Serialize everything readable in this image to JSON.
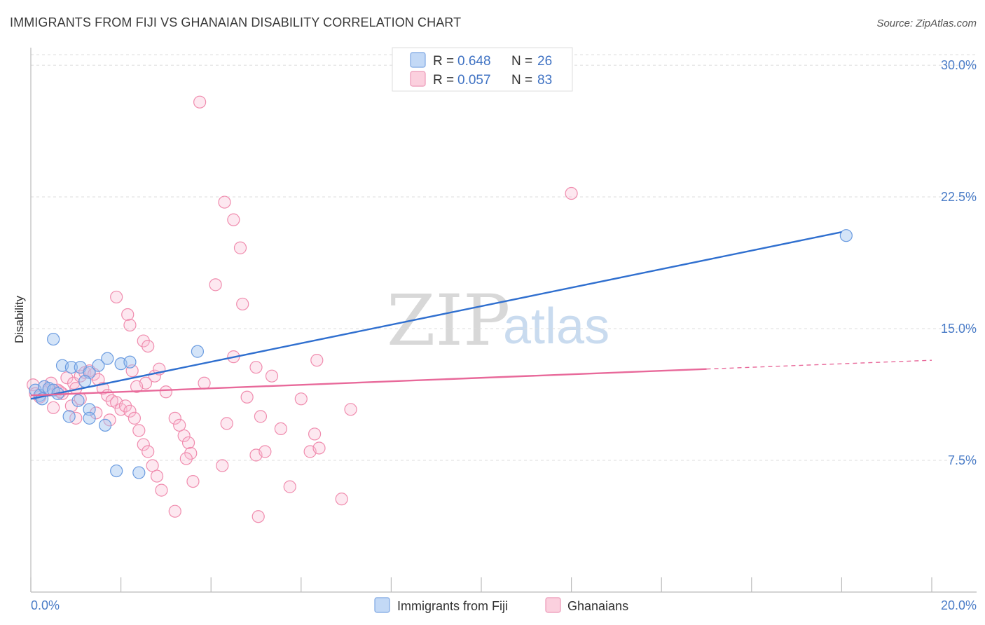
{
  "title": "IMMIGRANTS FROM FIJI VS GHANAIAN DISABILITY CORRELATION CHART",
  "source": "Source: ZipAtlas.com",
  "watermark": {
    "zip": "ZIP",
    "atlas": "atlas"
  },
  "chart_data": {
    "type": "scatter",
    "title": "IMMIGRANTS FROM FIJI VS GHANAIAN DISABILITY CORRELATION CHART",
    "xlabel": "",
    "ylabel": "Disability",
    "xlim": [
      0,
      20
    ],
    "ylim": [
      0,
      31
    ],
    "x_tick_labels": {
      "min": "0.0%",
      "max": "20.0%"
    },
    "y_ticks": [
      {
        "value": 7.5,
        "label": "7.5%"
      },
      {
        "value": 15.0,
        "label": "15.0%"
      },
      {
        "value": 22.5,
        "label": "22.5%"
      },
      {
        "value": 30.0,
        "label": "30.0%"
      }
    ],
    "grid": true,
    "legend_position": "top-center",
    "series": [
      {
        "name": "Immigrants from Fiji",
        "color": "#6a9be0",
        "line_color": "#2f6fcf",
        "r_label": "R =",
        "r_value": "0.648",
        "n_label": "N =",
        "n_value": "26",
        "trend": {
          "x0": 0.0,
          "y0": 11.0,
          "x1": 18.0,
          "y1": 20.5,
          "dashed_to": null
        },
        "points": [
          [
            0.1,
            11.5
          ],
          [
            0.2,
            11.2
          ],
          [
            0.3,
            11.7
          ],
          [
            0.4,
            11.6
          ],
          [
            0.5,
            11.5
          ],
          [
            0.6,
            11.3
          ],
          [
            0.5,
            14.4
          ],
          [
            0.7,
            12.9
          ],
          [
            0.9,
            12.8
          ],
          [
            1.1,
            12.8
          ],
          [
            1.3,
            12.5
          ],
          [
            1.5,
            12.9
          ],
          [
            1.7,
            13.3
          ],
          [
            2.0,
            13.0
          ],
          [
            2.2,
            13.1
          ],
          [
            3.7,
            13.7
          ],
          [
            1.2,
            12.0
          ],
          [
            1.05,
            10.9
          ],
          [
            0.85,
            10.0
          ],
          [
            1.3,
            10.4
          ],
          [
            1.3,
            9.9
          ],
          [
            1.65,
            9.5
          ],
          [
            1.9,
            6.9
          ],
          [
            2.4,
            6.8
          ],
          [
            18.1,
            20.3
          ],
          [
            0.25,
            11.0
          ]
        ]
      },
      {
        "name": "Ghanaians",
        "color": "#f08cae",
        "line_color": "#e8699a",
        "r_label": "R =",
        "r_value": "0.057",
        "n_label": "N =",
        "n_value": "83",
        "trend": {
          "x0": 0.0,
          "y0": 11.2,
          "x1": 15.0,
          "y1": 12.7,
          "dashed_to": {
            "x": 20.0,
            "y": 13.2
          }
        },
        "points": [
          [
            0.05,
            11.8
          ],
          [
            0.1,
            11.3
          ],
          [
            0.3,
            11.7
          ],
          [
            0.4,
            11.5
          ],
          [
            0.5,
            10.5
          ],
          [
            0.6,
            11.5
          ],
          [
            0.7,
            11.3
          ],
          [
            0.8,
            12.2
          ],
          [
            0.9,
            10.6
          ],
          [
            0.95,
            11.9
          ],
          [
            1.0,
            11.6
          ],
          [
            1.1,
            12.3
          ],
          [
            1.2,
            12.5
          ],
          [
            1.3,
            12.6
          ],
          [
            1.4,
            12.4
          ],
          [
            1.5,
            12.1
          ],
          [
            1.6,
            11.6
          ],
          [
            1.7,
            11.2
          ],
          [
            1.8,
            10.9
          ],
          [
            1.9,
            10.8
          ],
          [
            2.0,
            10.4
          ],
          [
            2.1,
            10.6
          ],
          [
            2.2,
            10.3
          ],
          [
            2.3,
            9.9
          ],
          [
            2.4,
            9.2
          ],
          [
            2.5,
            8.4
          ],
          [
            2.6,
            8.0
          ],
          [
            2.7,
            7.2
          ],
          [
            2.8,
            6.6
          ],
          [
            2.9,
            5.8
          ],
          [
            1.9,
            16.8
          ],
          [
            2.15,
            15.8
          ],
          [
            2.2,
            15.2
          ],
          [
            2.5,
            14.3
          ],
          [
            2.6,
            14.0
          ],
          [
            2.75,
            12.3
          ],
          [
            2.85,
            12.7
          ],
          [
            2.55,
            11.9
          ],
          [
            3.0,
            11.4
          ],
          [
            3.2,
            9.9
          ],
          [
            3.3,
            9.5
          ],
          [
            3.4,
            8.9
          ],
          [
            3.5,
            8.5
          ],
          [
            3.55,
            7.9
          ],
          [
            3.6,
            6.3
          ],
          [
            3.2,
            4.6
          ],
          [
            3.75,
            27.9
          ],
          [
            3.85,
            11.9
          ],
          [
            4.1,
            17.5
          ],
          [
            4.3,
            22.2
          ],
          [
            4.5,
            21.2
          ],
          [
            4.65,
            19.6
          ],
          [
            4.7,
            16.4
          ],
          [
            4.5,
            13.4
          ],
          [
            4.35,
            9.6
          ],
          [
            4.8,
            11.1
          ],
          [
            5.0,
            12.8
          ],
          [
            5.0,
            7.8
          ],
          [
            5.05,
            4.3
          ],
          [
            5.2,
            8.0
          ],
          [
            5.35,
            12.3
          ],
          [
            5.75,
            6.0
          ],
          [
            6.2,
            8.0
          ],
          [
            6.3,
            9.0
          ],
          [
            6.35,
            13.2
          ],
          [
            6.4,
            8.2
          ],
          [
            6.9,
            5.3
          ],
          [
            7.1,
            10.4
          ],
          [
            12.0,
            22.7
          ],
          [
            1.0,
            9.9
          ],
          [
            1.45,
            10.2
          ],
          [
            1.75,
            9.8
          ],
          [
            2.25,
            12.6
          ],
          [
            0.2,
            11.1
          ],
          [
            0.45,
            11.9
          ],
          [
            0.65,
            11.4
          ],
          [
            1.1,
            11.0
          ],
          [
            2.35,
            11.7
          ],
          [
            3.45,
            7.6
          ],
          [
            4.25,
            7.2
          ],
          [
            5.1,
            10.0
          ],
          [
            5.55,
            9.3
          ],
          [
            6.0,
            11.0
          ]
        ]
      }
    ]
  }
}
